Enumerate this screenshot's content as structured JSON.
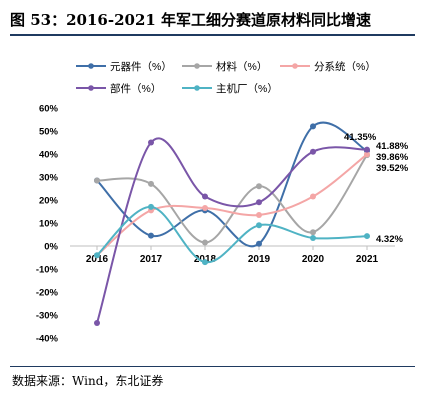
{
  "header": {
    "title": "图 53：2016-2021 年军工细分赛道原材料同比增速"
  },
  "footer": {
    "source": "数据来源：Wind，东北证券"
  },
  "colors": {
    "title_rule": "#1f3a60",
    "series": [
      "#3f6fa8",
      "#a6a6a6",
      "#f4a6a6",
      "#7a56a8",
      "#4fb3c4"
    ]
  },
  "chart_data": {
    "type": "line",
    "title": "",
    "xlabel": "",
    "ylabel": "",
    "categories": [
      "2016",
      "2017",
      "2018",
      "2019",
      "2020",
      "2021"
    ],
    "ylim": [
      -40,
      60
    ],
    "yticks": [
      "60%",
      "50%",
      "40%",
      "30%",
      "20%",
      "10%",
      "0%",
      "-10%",
      "-20%",
      "-30%",
      "-40%"
    ],
    "grid": false,
    "legend_position": "top",
    "series": [
      {
        "name": "元器件（%）",
        "values": [
          28.5,
          4.5,
          15.5,
          1.0,
          52.0,
          41.35
        ]
      },
      {
        "name": "材料（%）",
        "values": [
          28.5,
          27.0,
          1.5,
          26.0,
          6.0,
          39.52
        ]
      },
      {
        "name": "分系统（%）",
        "values": [
          -4.0,
          15.5,
          16.5,
          13.5,
          21.5,
          39.86
        ]
      },
      {
        "name": "部件（%）",
        "values": [
          -33.5,
          45.0,
          21.5,
          19.0,
          41.0,
          41.88
        ]
      },
      {
        "name": "主机厂（%）",
        "values": [
          -4.0,
          17.0,
          -7.0,
          9.0,
          3.5,
          4.32
        ]
      }
    ],
    "annotations": [
      "41.35%",
      "41.88%",
      "39.86%",
      "39.52%",
      "4.32%"
    ]
  }
}
